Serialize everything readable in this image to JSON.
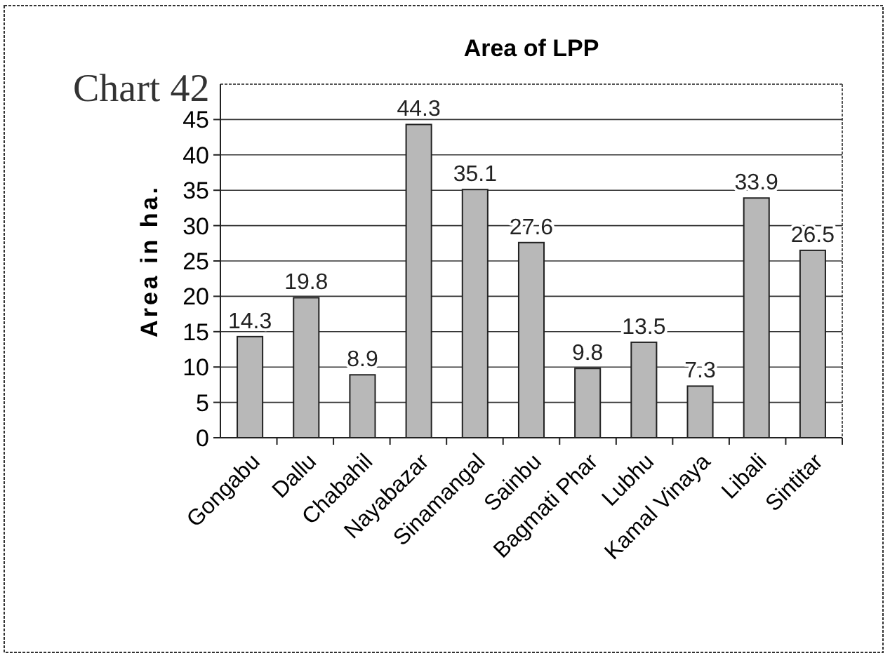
{
  "chart_data": {
    "type": "bar",
    "title": "Area of LPP",
    "ylabel": "Area in ha.",
    "annotations": [
      "Chart 42"
    ],
    "categories": [
      "Gongabu",
      "Dallu",
      "Chabahil",
      "Nayabazar",
      "Sinamangal",
      "Sainbu",
      "Bagmati Phar",
      "Lubhu",
      "Kamal Vinaya",
      "Libali",
      "Sintitar"
    ],
    "values": [
      14.3,
      19.8,
      8.9,
      44.3,
      35.1,
      27.6,
      9.8,
      13.5,
      7.3,
      33.9,
      26.5
    ],
    "color": "#b8b8b8",
    "ylim": [
      0,
      50
    ],
    "yticks": [
      0,
      5,
      10,
      15,
      20,
      25,
      30,
      35,
      40,
      45
    ],
    "grid": "y",
    "data_labels": true
  }
}
